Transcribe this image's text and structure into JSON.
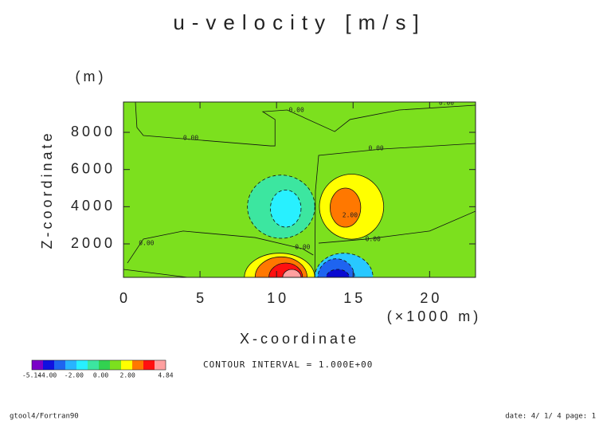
{
  "chart_data": {
    "type": "contour",
    "title": "u-velocity [m/s]",
    "xlabel": "X-coordinate",
    "xunit": "(×1000 m)",
    "ylabel": "Z-coordinate",
    "yunit": "(m)",
    "xlim": [
      0,
      23
    ],
    "ylim": [
      200,
      9630
    ],
    "xticks": [
      0,
      5,
      10,
      15,
      20
    ],
    "yticks": [
      2000,
      4000,
      6000,
      8000
    ],
    "background": "#7ce01e",
    "regions": [
      {
        "level": -1,
        "color": "#3ce6a0",
        "cx": 10.3,
        "cy": 4000,
        "rx": 2.2,
        "ry": 1700
      },
      {
        "level": -2,
        "color": "#28f0ff",
        "cx": 10.6,
        "cy": 3900,
        "rx": 1.0,
        "ry": 1000
      },
      {
        "level": 1,
        "color": "#ffff00",
        "cx": 14.9,
        "cy": 4000,
        "rx": 2.1,
        "ry": 1750
      },
      {
        "level": 2,
        "color": "#ff7800",
        "cx": 14.5,
        "cy": 3950,
        "rx": 1.0,
        "ry": 1050
      },
      {
        "level": 1,
        "color": "#ffff00",
        "cx": 10.2,
        "cy": 200,
        "rx": 2.3,
        "ry": 1300
      },
      {
        "level": 2,
        "color": "#ff7800",
        "cx": 10.3,
        "cy": 200,
        "rx": 1.7,
        "ry": 1100
      },
      {
        "level": 3,
        "color": "#ff1010",
        "cx": 10.6,
        "cy": 200,
        "rx": 1.1,
        "ry": 770
      },
      {
        "level": 4,
        "color": "#ffa0a0",
        "cx": 11.0,
        "cy": 200,
        "rx": 0.6,
        "ry": 430
      },
      {
        "level": -1,
        "color": "#28c8ff",
        "cx": 14.4,
        "cy": 200,
        "rx": 1.9,
        "ry": 1300
      },
      {
        "level": -2,
        "color": "#1e64f0",
        "cx": 13.9,
        "cy": 200,
        "rx": 1.2,
        "ry": 1000
      },
      {
        "level": -3,
        "color": "#0a0ad0",
        "cx": 14.0,
        "cy": 200,
        "rx": 0.75,
        "ry": 430
      }
    ],
    "zero_lines": [
      {
        "x": [
          0.78,
          0.88,
          1.3,
          9.6,
          9.9,
          9.9,
          9.1,
          10.7,
          13.8,
          14.8,
          18,
          23
        ],
        "y": [
          9630,
          8260,
          7830,
          7270,
          7270,
          8690,
          9110,
          9200,
          8040,
          8690,
          9200,
          9460
        ]
      },
      {
        "x": [
          12.5,
          12.54,
          12.75,
          16.9,
          23
        ],
        "y": [
          200,
          4830,
          6760,
          7100,
          7400
        ]
      },
      {
        "x": [
          0.26,
          1.3,
          3.9,
          8.6,
          11.7,
          12.4
        ],
        "y": [
          970,
          2260,
          2690,
          2340,
          1740,
          1400
        ]
      },
      {
        "x": [
          12.75,
          15.9,
          20,
          23
        ],
        "y": [
          2040,
          2260,
          2690,
          3760
        ]
      },
      {
        "x": [
          0,
          4.2
        ],
        "y": [
          630,
          200
        ]
      }
    ],
    "contour_labels": [
      {
        "text": "0.00",
        "x": 4.4,
        "y": 7700
      },
      {
        "text": "0.00",
        "x": 11.3,
        "y": 9200
      },
      {
        "text": "0.00",
        "x": 16.5,
        "y": 7140
      },
      {
        "text": "0.00",
        "x": 21.1,
        "y": 9590
      },
      {
        "text": "0.00",
        "x": 1.5,
        "y": 2040
      },
      {
        "text": "0.00",
        "x": 11.7,
        "y": 1830
      },
      {
        "text": "0.00",
        "x": 16.3,
        "y": 2260
      },
      {
        "text": "2.00",
        "x": 14.8,
        "y": 3540
      }
    ],
    "colorbar": {
      "colors": [
        "#7a00c8",
        "#1010e0",
        "#1e64f0",
        "#28b4ff",
        "#28f0ff",
        "#3ce6a0",
        "#32d250",
        "#7ce01e",
        "#ffff00",
        "#ff7800",
        "#ff1010",
        "#ffa0a0"
      ],
      "lim": [
        -5.14,
        4.84
      ],
      "ticks": [
        -5.14,
        {
          "value": -4,
          "label": "-4.00"
        },
        {
          "value": -2,
          "label": "-2.00"
        },
        {
          "value": 0,
          "label": "0.00"
        },
        {
          "value": 2,
          "label": "2.00"
        },
        4.84
      ]
    },
    "contour_interval": "CONTOUR INTERVAL = 1.000E+00"
  },
  "footer": {
    "left": "gtool4/Fortran90",
    "right": "date: 4/ 1/ 4 page: 1"
  }
}
